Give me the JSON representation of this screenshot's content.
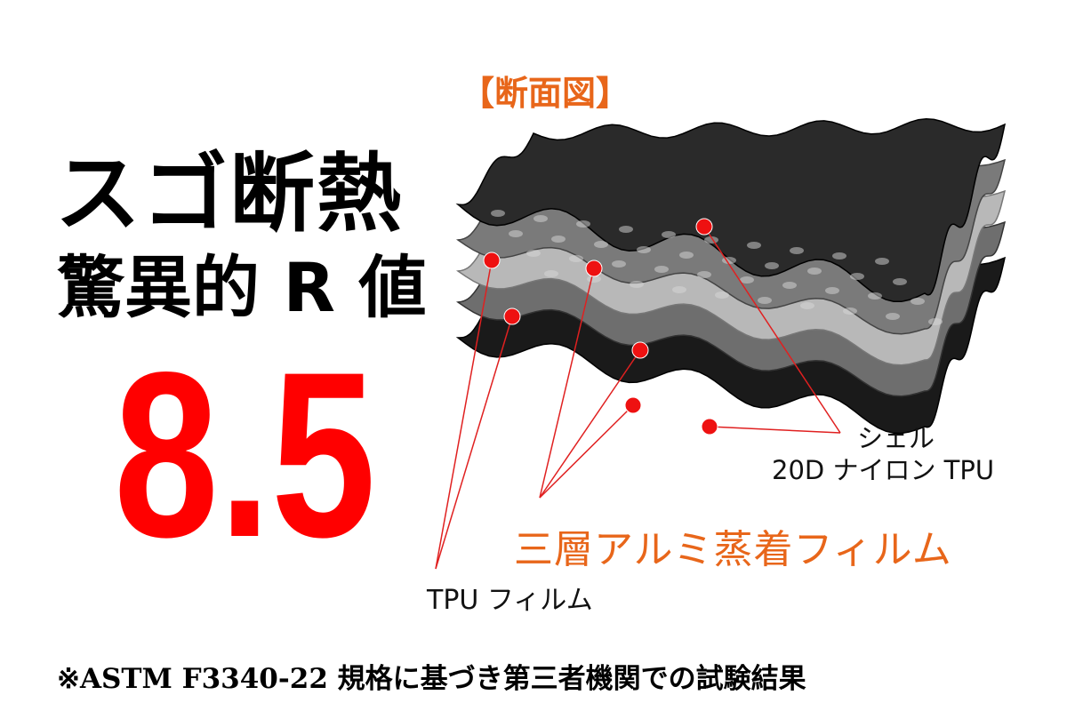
{
  "section_label": "【断面図】",
  "headline": {
    "line1": "スゴ断熱",
    "line2": "驚異的 R 値"
  },
  "r_value": "8.5",
  "labels": {
    "shell_line1": "シェル",
    "shell_line2": "20D ナイロン TPU",
    "aluminum_film": "三層アルミ蒸着フィルム",
    "tpu_film": "TPU フィルム"
  },
  "footnote": "※ASTM F3340-22 規格に基づき第三者機関での試験結果",
  "colors": {
    "accent_orange": "#e8661a",
    "value_red": "#ff0000",
    "marker_red": "#ee1111"
  }
}
